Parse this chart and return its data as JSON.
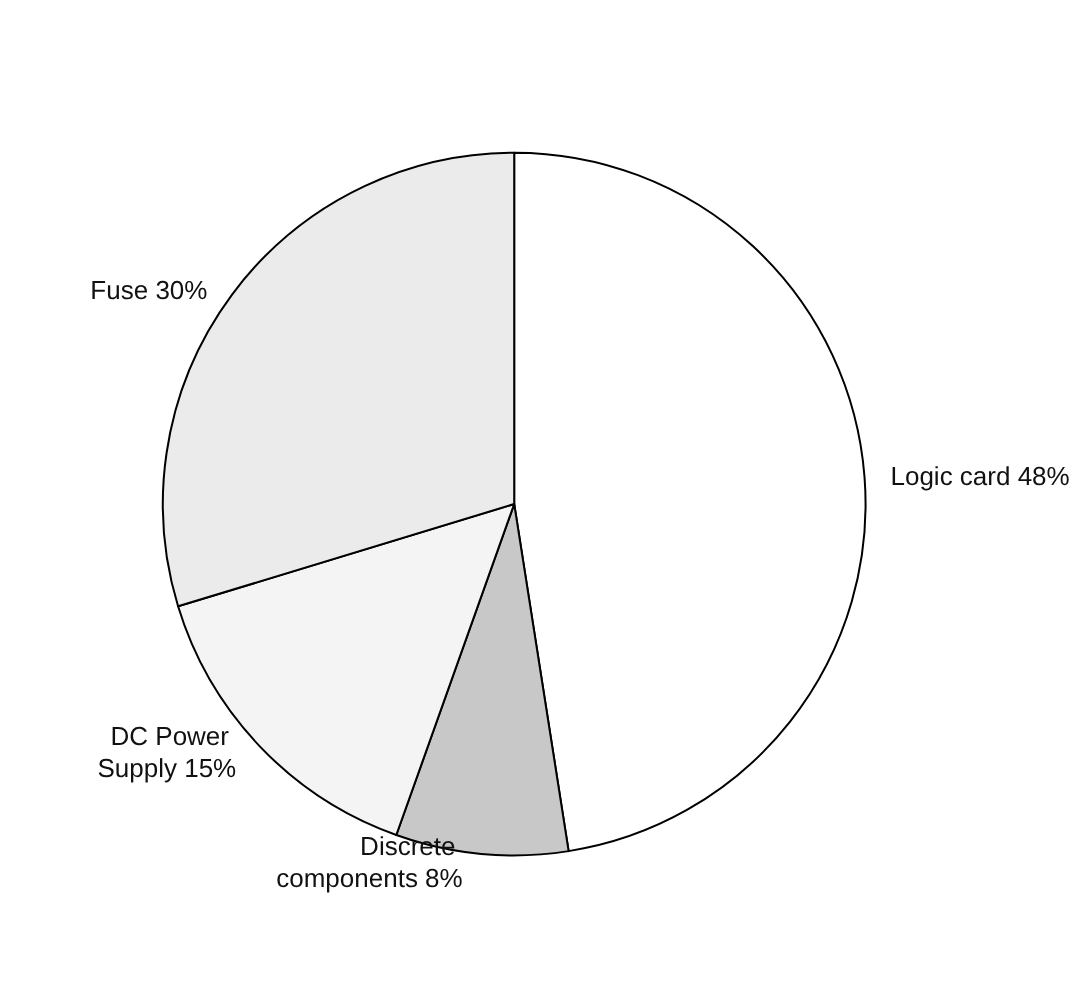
{
  "chart_data": {
    "type": "pie",
    "categories": [
      "Logic card",
      "Discrete components",
      "DC Power Supply",
      "Fuse"
    ],
    "values": [
      48,
      8,
      15,
      30
    ],
    "value_labels": [
      "48%",
      "8%",
      "15%",
      "30%"
    ],
    "colors": [
      "#ffffff",
      "#c8c8c8",
      "#f4f4f4",
      "#ebebeb"
    ],
    "legend": false
  }
}
